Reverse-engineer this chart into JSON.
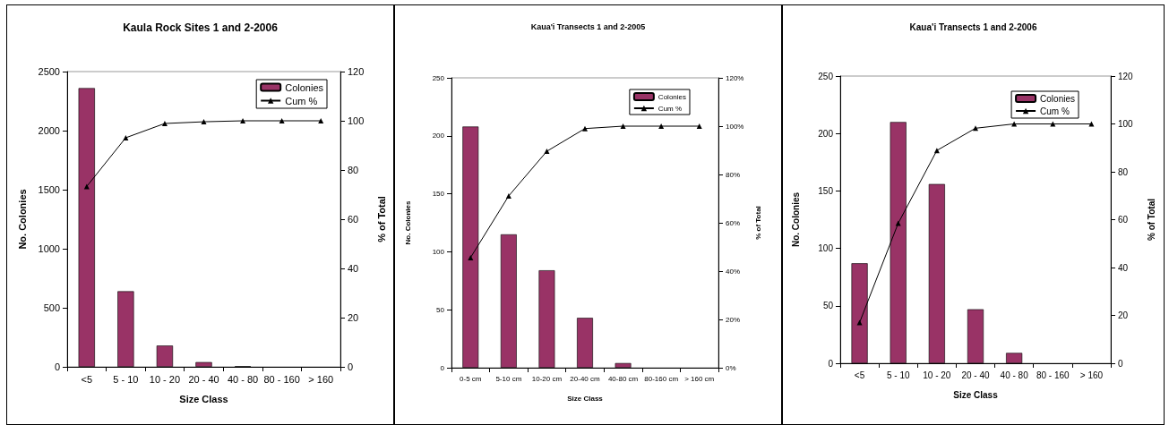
{
  "chart_data": [
    {
      "type": "bar",
      "title": "Kaula Rock Sites 1 and 2-2006",
      "xlabel": "Size Class",
      "ylabel": "No. Colonies",
      "y2label": "% of Total",
      "categories": [
        "<5",
        "5 - 10",
        "10 - 20",
        "20 - 40",
        "40 - 80",
        "80 - 160",
        "> 160"
      ],
      "series": [
        {
          "name": "Colonies",
          "color": "#993366",
          "values": [
            2360,
            640,
            180,
            40,
            5,
            0,
            0
          ]
        },
        {
          "name": "Cum %",
          "type": "line",
          "axis": "y2",
          "color": "#000000",
          "values": [
            73.3,
            93.1,
            98.9,
            99.6,
            100,
            100,
            100
          ]
        }
      ],
      "ylim": [
        0,
        2500
      ],
      "yticks": [
        0,
        500,
        1000,
        1500,
        2000,
        2500
      ],
      "y2lim": [
        0,
        120
      ],
      "y2ticks": [
        0,
        20,
        40,
        60,
        80,
        100,
        120
      ],
      "legend": "top right",
      "marker": "triangle",
      "line_style": "solid"
    },
    {
      "type": "bar",
      "title": "Kaua'i Transects 1 and 2-2005",
      "xlabel": "Size Class",
      "ylabel": "No. Colonies",
      "y2label": "% of Total",
      "categories": [
        "0-5 cm",
        "5-10 cm",
        "10-20 cm",
        "20-40 cm",
        "40-80 cm",
        "80-160 cm",
        "> 160 cm"
      ],
      "series": [
        {
          "name": "Colonies",
          "color": "#993366",
          "values": [
            208,
            115,
            84,
            43,
            4,
            0,
            0
          ]
        },
        {
          "name": "Cum %",
          "type": "line",
          "axis": "y2",
          "color": "#000000",
          "values": [
            45.6,
            71.1,
            89.6,
            99,
            100,
            100,
            100
          ]
        }
      ],
      "ylim": [
        0,
        250
      ],
      "yticks": [
        0,
        50,
        100,
        150,
        200,
        250
      ],
      "y2lim": [
        0,
        120
      ],
      "y2ticks": [
        {
          "value": 0,
          "label": "0%"
        },
        {
          "value": 20,
          "label": "20%"
        },
        {
          "value": 40,
          "label": "40%"
        },
        {
          "value": 60,
          "label": "60%"
        },
        {
          "value": 80,
          "label": "80%"
        },
        {
          "value": 100,
          "label": "100%"
        },
        {
          "value": 120,
          "label": "120%"
        }
      ],
      "legend": "top right",
      "marker": "triangle",
      "line_style": "solid"
    },
    {
      "type": "bar",
      "title": "Kaua'i Transects 1 and 2-2006",
      "xlabel": "Size Class",
      "ylabel": "No. Colonies",
      "y2label": "% of Total",
      "categories": [
        "<5",
        "5 - 10",
        "10 - 20",
        "20 - 40",
        "40 - 80",
        "80 - 160",
        "> 160"
      ],
      "series": [
        {
          "name": "Colonies",
          "color": "#993366",
          "values": [
            87,
            210,
            156,
            47,
            9,
            0,
            0
          ]
        },
        {
          "name": "Cum %",
          "type": "line",
          "axis": "y2",
          "color": "#000000",
          "values": [
            17,
            58.5,
            88.9,
            98.2,
            100,
            100,
            100
          ]
        }
      ],
      "ylim": [
        0,
        250
      ],
      "yticks": [
        0,
        50,
        100,
        150,
        200,
        250
      ],
      "y2lim": [
        0,
        120
      ],
      "y2ticks": [
        0,
        20,
        40,
        60,
        80,
        100,
        120
      ],
      "legend": "top right",
      "marker": "triangle",
      "line_style": "solid"
    }
  ]
}
